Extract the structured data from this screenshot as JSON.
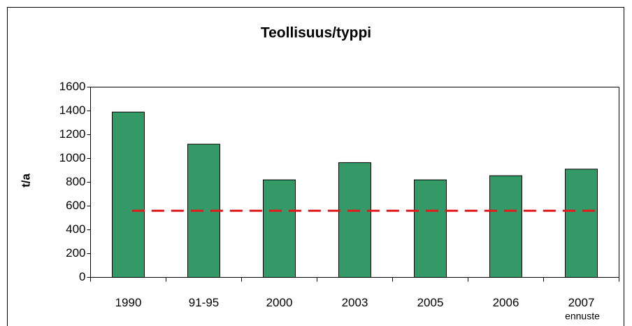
{
  "chart_data": {
    "type": "bar",
    "title": "Teollisuus/typpi",
    "y_label": "t/a",
    "categories": [
      "1990",
      "91-95",
      "2000",
      "2003",
      "2005",
      "2006",
      "2007"
    ],
    "values": [
      1390,
      1120,
      820,
      965,
      820,
      855,
      910
    ],
    "color": "#339966",
    "annotation": "ennuste",
    "reference_line": {
      "value": 560,
      "color": "#e31a1c"
    },
    "ylim": [
      0,
      1600
    ],
    "yticks": [
      0,
      200,
      400,
      600,
      800,
      1000,
      1200,
      1400,
      1600
    ],
    "grid": false
  }
}
